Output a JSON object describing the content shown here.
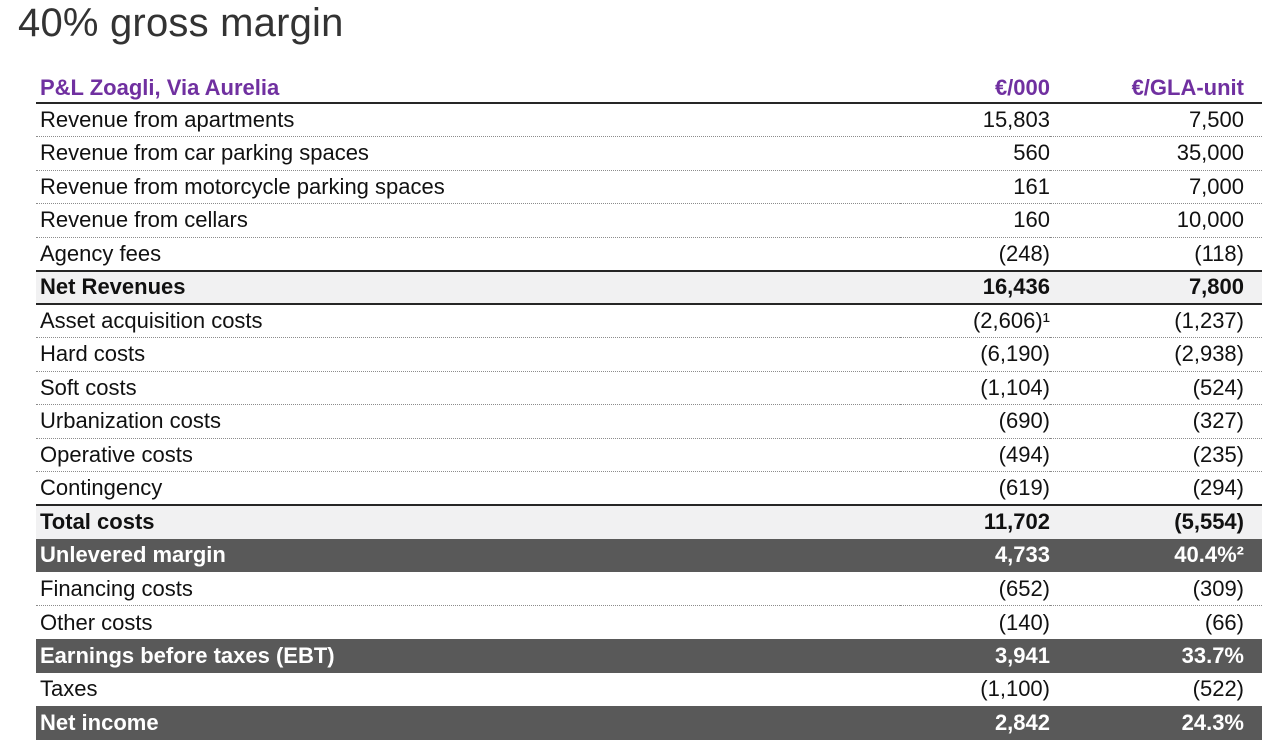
{
  "title": "40% gross margin",
  "colors": {
    "accent_purple": "#7030A0",
    "dark_row_bg": "#595959",
    "subtotal_row_bg": "#F1F1F2",
    "title_text": "#333333"
  },
  "table": {
    "header": {
      "label": "P&L Zoagli, Via Aurelia",
      "col1": "€/000",
      "col2": "€/GLA-unit"
    },
    "rows": [
      {
        "label": "Revenue from apartments",
        "eur000": "15,803",
        "gla": "7,500"
      },
      {
        "label": "Revenue from car parking spaces",
        "eur000": "560",
        "gla": "35,000"
      },
      {
        "label": "Revenue from motorcycle parking spaces",
        "eur000": "161",
        "gla": "7,000"
      },
      {
        "label": "Revenue from cellars",
        "eur000": "160",
        "gla": "10,000"
      },
      {
        "label": "Agency fees",
        "eur000": "(248)",
        "gla": "(118)"
      },
      {
        "label": "Net Revenues",
        "eur000": "16,436",
        "gla": "7,800"
      },
      {
        "label": "Asset acquisition costs",
        "eur000": "(2,606)¹",
        "gla": "(1,237)"
      },
      {
        "label": "Hard costs",
        "eur000": "(6,190)",
        "gla": "(2,938)"
      },
      {
        "label": "Soft costs",
        "eur000": "(1,104)",
        "gla": "(524)"
      },
      {
        "label": "Urbanization costs",
        "eur000": "(690)",
        "gla": "(327)"
      },
      {
        "label": "Operative costs",
        "eur000": "(494)",
        "gla": "(235)"
      },
      {
        "label": "Contingency",
        "eur000": "(619)",
        "gla": "(294)"
      },
      {
        "label": "Total costs",
        "eur000": "11,702",
        "gla": "(5,554)"
      },
      {
        "label": "Unlevered margin",
        "eur000": "4,733",
        "gla": "40.4%²"
      },
      {
        "label": "Financing costs",
        "eur000": "(652)",
        "gla": "(309)"
      },
      {
        "label": "Other costs",
        "eur000": "(140)",
        "gla": "(66)"
      },
      {
        "label": "Earnings before taxes (EBT)",
        "eur000": "3,941",
        "gla": "33.7%"
      },
      {
        "label": "Taxes",
        "eur000": "(1,100)",
        "gla": "(522)"
      },
      {
        "label": "Net income",
        "eur000": "2,842",
        "gla": "24.3%"
      }
    ]
  }
}
